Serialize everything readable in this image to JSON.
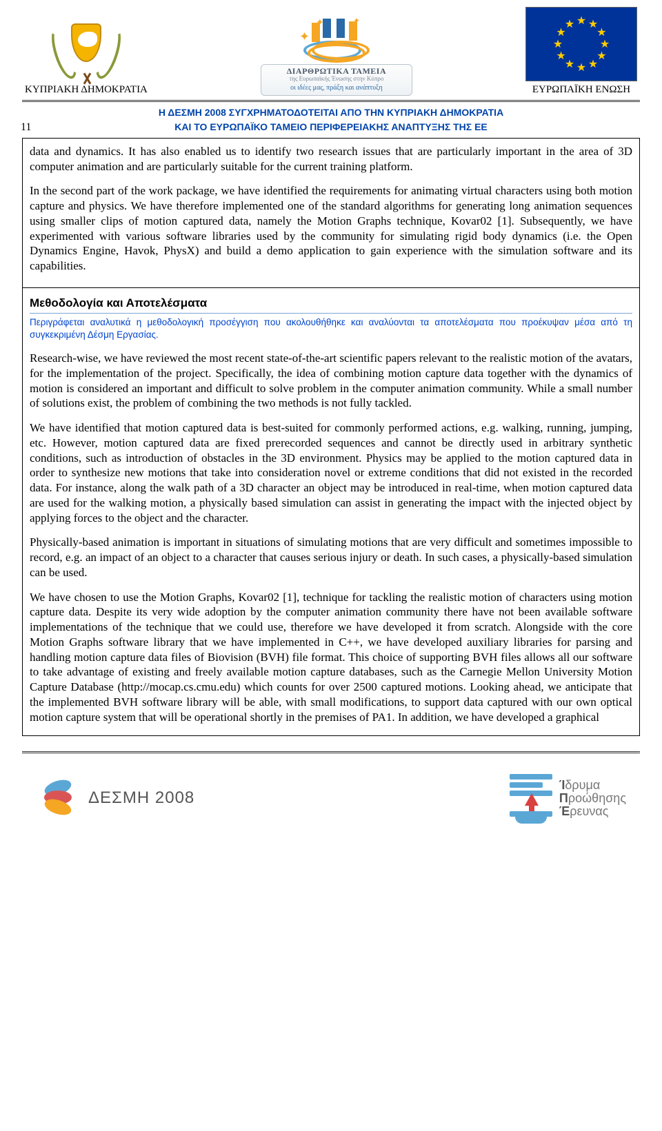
{
  "header": {
    "left_caption": "ΚΥΠΡΙΑΚΗ ΔΗΜΟΚΡΑΤΙΑ",
    "right_caption": "ΕΥΡΩΠΑΪΚΗ ΕΝΩΣΗ",
    "center_title": "ΔΙΑΡΘΡΩΤΙΚΑ ΤΑΜΕΙΑ",
    "center_sub": "της Ευρωπαϊκής Ένωσης στην Κύπρο",
    "center_motto": "οι ιδέες μας, πράξη και ανάπτυξη",
    "funding_line1": "Η ΔΕΣΜΗ 2008 ΣΥΓΧΡΗΜΑΤΟΔΟΤΕΙΤΑΙ ΑΠΟ ΤΗΝ ΚΥΠΡΙΑΚΗ ΔΗΜΟΚΡΑΤΙΑ",
    "funding_line2": "ΚΑΙ ΤΟ ΕΥΡΩΠΑΪΚΟ ΤΑΜΕΙΟ ΠΕΡΙΦΕΡΕΙΑΚΗΣ ΑΝΑΠΤΥΞΗΣ ΤΗΣ ΕΕ"
  },
  "page_number": "11",
  "top_section": {
    "p1": "data and dynamics. It has also enabled us to identify two research issues that are particularly important in the area of 3D computer animation and are particularly suitable for the current training platform.",
    "p2": "In the second part of the work package, we have identified the requirements for animating virtual characters using both motion capture and physics. We have therefore implemented one of the standard algorithms for generating long animation sequences using smaller clips of motion captured data, namely the Motion Graphs technique, Kovar02 [1]. Subsequently, we have experimented with various software libraries used by the community for simulating rigid body dynamics (i.e. the Open Dynamics Engine, Havok, PhysX) and build a demo application to gain experience with the simulation software and its capabilities."
  },
  "method_section": {
    "title": "Μεθοδολογία και Αποτελέσματα",
    "note": "Περιγράφεται αναλυτικά η μεθοδολογική προσέγγιση που ακολουθήθηκε και αναλύονται τα αποτελέσματα που προέκυψαν μέσα από τη συγκεκριμένη Δέσμη Εργασίας.",
    "p1": "Research-wise, we have reviewed the most recent state-of-the-art scientific papers relevant to the realistic motion of the avatars, for the implementation of the project. Specifically, the idea of combining motion capture data together with the dynamics of motion is considered an important and difficult to solve problem in the computer animation community. While a small number of solutions exist, the problem of combining the two methods is not fully tackled.",
    "p2": "We have identified that motion captured data is best-suited for commonly performed actions, e.g. walking, running, jumping, etc. However, motion captured data are fixed prerecorded sequences and cannot be directly used in arbitrary synthetic conditions, such as introduction of obstacles in the 3D environment. Physics may be applied to the motion captured data in order to synthesize new motions that take into consideration novel or extreme conditions that did not existed in the recorded data. For instance, along the walk path of a 3D character an object may be introduced in real-time, when motion captured data are used for the walking motion, a physically based simulation can assist in generating the impact with the injected object by applying forces to the object and the character.",
    "p3": "Physically-based animation is important in situations of simulating motions that are very difficult and sometimes impossible to record, e.g. an impact of an object to a character that causes serious injury or death. In such cases, a physically-based simulation can be used.",
    "p4": "We have chosen to use the Motion Graphs, Kovar02 [1], technique for tackling the realistic motion of characters using motion capture data. Despite its very wide adoption by the computer animation community there have not been available software implementations of the technique that we could use, therefore we have developed it from scratch. Alongside with the core Motion Graphs software library that we have implemented in C++, we have developed auxiliary libraries for parsing and handling motion capture data files of Biovision (BVH) file format. This choice of supporting BVH files allows all our software to take advantage of existing and freely available motion capture databases, such as the Carnegie Mellon University Motion Capture Database (http://mocap.cs.cmu.edu) which counts for over 2500 captured motions. Looking ahead, we anticipate that the implemented BVH software library will be able, with small modifications, to support data captured with our own optical motion capture system that will be operational shortly in the premises of PA1. In addition, we have developed a graphical"
  },
  "footer": {
    "desmi": "ΔΕΣΜΗ 2008",
    "ipe1": "Ίδρυμα",
    "ipe2": "Προώθησης",
    "ipe3": "Έρευνας"
  },
  "colors": {
    "eu_blue": "#003399",
    "eu_gold": "#ffcc00",
    "link_blue": "#0044cc",
    "rule_blue": "#7aa5d6"
  }
}
